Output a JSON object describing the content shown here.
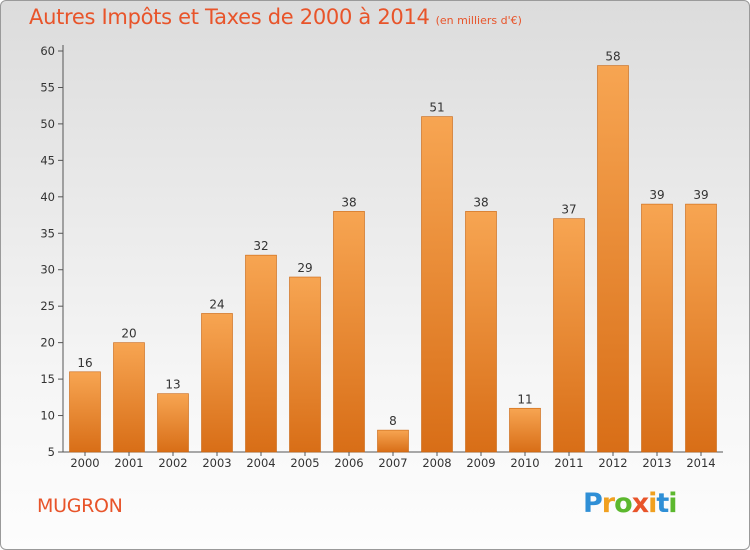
{
  "title": "Autres Impôts et Taxes de 2000 à 2014",
  "subtitle": "(en milliers d'€)",
  "place": "MUGRON",
  "logo": {
    "letters": [
      "P",
      "r",
      "o",
      "x",
      "i",
      "t",
      "i"
    ],
    "colors": [
      "#2f8fd6",
      "#f0a020",
      "#5cb82e",
      "#e8542a",
      "#f0a020",
      "#2f8fd6",
      "#5cb82e"
    ]
  },
  "colors": {
    "title": "#e8542a",
    "bar_top": "#f7a552",
    "bar_bottom": "#d86e17",
    "bar_edge": "#c96410"
  },
  "chart_data": {
    "type": "bar",
    "categories": [
      "2000",
      "2001",
      "2002",
      "2003",
      "2004",
      "2005",
      "2006",
      "2007",
      "2008",
      "2009",
      "2010",
      "2011",
      "2012",
      "2013",
      "2014"
    ],
    "values": [
      16,
      20,
      13,
      24,
      32,
      29,
      38,
      8,
      51,
      38,
      11,
      37,
      58,
      39,
      39
    ],
    "ylim": [
      5,
      60
    ],
    "yticks": [
      5,
      10,
      15,
      20,
      25,
      30,
      35,
      40,
      45,
      50,
      55,
      60
    ],
    "grid": false,
    "show_value_labels": true
  }
}
